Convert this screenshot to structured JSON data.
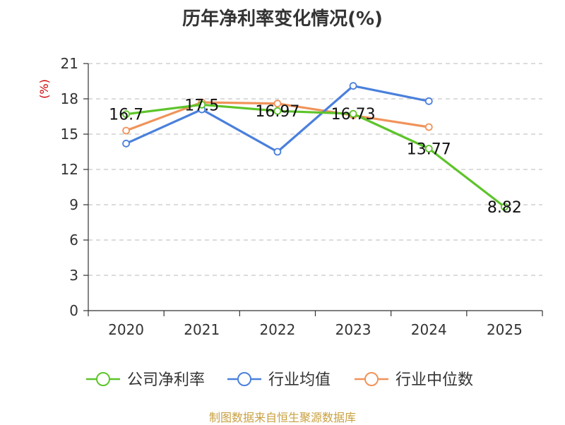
{
  "title": "历年净利率变化情况(%)",
  "source": "制图数据来自恒生聚源数据库",
  "chart_data": {
    "type": "line",
    "title": "历年净利率变化情况(%)",
    "ylabel": "(%)",
    "xlabel": "",
    "categories": [
      "2020",
      "2021",
      "2022",
      "2023",
      "2024",
      "2025"
    ],
    "ylim": [
      0,
      21
    ],
    "yticks": [
      0,
      3,
      6,
      9,
      12,
      15,
      18,
      21
    ],
    "grid": true,
    "legend_position": "bottom",
    "series": [
      {
        "name": "公司净利率",
        "color": "#5dc42a",
        "values": [
          16.7,
          17.5,
          16.97,
          16.73,
          13.77,
          8.82
        ],
        "labels": [
          "16.7",
          "17.5",
          "16.97",
          "16.73",
          "13.77",
          "8.82"
        ]
      },
      {
        "name": "行业均值",
        "color": "#4a80dc",
        "values": [
          14.2,
          17.1,
          13.5,
          19.1,
          17.8,
          null
        ],
        "labels": []
      },
      {
        "name": "行业中位数",
        "color": "#f0935a",
        "values": [
          15.3,
          17.7,
          17.6,
          16.6,
          15.6,
          null
        ],
        "labels": []
      }
    ]
  }
}
